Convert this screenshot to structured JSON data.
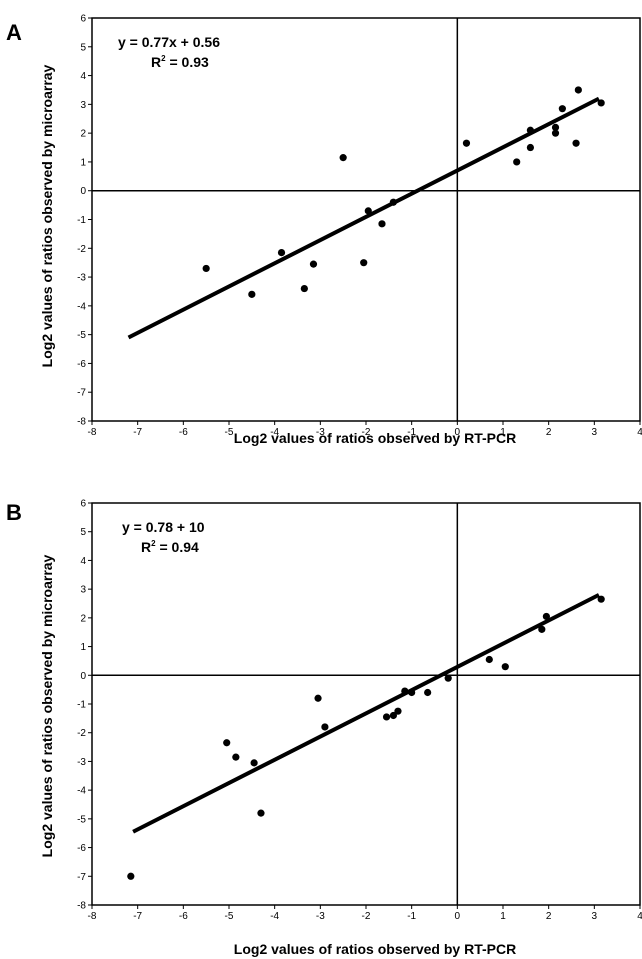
{
  "chart_data": [
    {
      "type": "scatter",
      "panel_label": "A",
      "xlabel": "Log2 values of ratios observed  by RT-PCR",
      "ylabel": "Log2 values of ratios observed by microarray",
      "xlim": [
        -8,
        4
      ],
      "ylim": [
        -8,
        6
      ],
      "x_ticks": [
        -8,
        -7,
        -6,
        -5,
        -4,
        -3,
        -2,
        -1,
        0,
        1,
        2,
        3,
        4
      ],
      "y_ticks": [
        -8,
        -7,
        -6,
        -5,
        -4,
        -3,
        -2,
        -1,
        0,
        1,
        2,
        3,
        4,
        5,
        6
      ],
      "equation": "y = 0.77x + 0.56",
      "r2_prefix": "R",
      "r2_sup": "2",
      "r2_value": " = 0.93",
      "fit_line": {
        "x": [
          -7.2,
          3.1
        ],
        "y": [
          -5.1,
          3.2
        ]
      },
      "points": [
        {
          "x": -5.5,
          "y": -2.7
        },
        {
          "x": -4.5,
          "y": -3.6
        },
        {
          "x": -3.85,
          "y": -2.15
        },
        {
          "x": -3.35,
          "y": -3.4
        },
        {
          "x": -3.15,
          "y": -2.55
        },
        {
          "x": -2.5,
          "y": 1.15
        },
        {
          "x": -2.05,
          "y": -2.5
        },
        {
          "x": -1.95,
          "y": -0.7
        },
        {
          "x": -1.65,
          "y": -1.15
        },
        {
          "x": -1.4,
          "y": -0.4
        },
        {
          "x": 0.2,
          "y": 1.65
        },
        {
          "x": 1.3,
          "y": 1.0
        },
        {
          "x": 1.6,
          "y": 1.5
        },
        {
          "x": 1.6,
          "y": 2.1
        },
        {
          "x": 2.15,
          "y": 2.0
        },
        {
          "x": 2.15,
          "y": 2.2
        },
        {
          "x": 2.3,
          "y": 2.85
        },
        {
          "x": 2.6,
          "y": 1.65
        },
        {
          "x": 2.65,
          "y": 3.5
        },
        {
          "x": 3.15,
          "y": 3.05
        }
      ]
    },
    {
      "type": "scatter",
      "panel_label": "B",
      "xlabel": "Log2 values of ratios observed  by RT-PCR",
      "ylabel": "Log2 values of ratios observed by microarray",
      "xlim": [
        -8,
        4
      ],
      "ylim": [
        -8,
        6
      ],
      "x_ticks": [
        -8,
        -7,
        -6,
        -5,
        -4,
        -3,
        -2,
        -1,
        0,
        1,
        2,
        3,
        4
      ],
      "y_ticks": [
        -8,
        -7,
        -6,
        -5,
        -4,
        -3,
        -2,
        -1,
        0,
        1,
        2,
        3,
        4,
        5,
        6
      ],
      "equation": "y = 0.78 + 10",
      "r2_prefix": "R",
      "r2_sup": "2",
      "r2_value": " = 0.94",
      "fit_line": {
        "x": [
          -7.1,
          3.1
        ],
        "y": [
          -5.45,
          2.8
        ]
      },
      "points": [
        {
          "x": -7.15,
          "y": -7.0
        },
        {
          "x": -5.05,
          "y": -2.35
        },
        {
          "x": -4.85,
          "y": -2.85
        },
        {
          "x": -4.45,
          "y": -3.05
        },
        {
          "x": -4.3,
          "y": -4.8
        },
        {
          "x": -3.05,
          "y": -0.8
        },
        {
          "x": -2.9,
          "y": -1.8
        },
        {
          "x": -1.55,
          "y": -1.45
        },
        {
          "x": -1.4,
          "y": -1.4
        },
        {
          "x": -1.3,
          "y": -1.25
        },
        {
          "x": -1.15,
          "y": -0.55
        },
        {
          "x": -1.0,
          "y": -0.6
        },
        {
          "x": -0.65,
          "y": -0.6
        },
        {
          "x": -0.2,
          "y": -0.1
        },
        {
          "x": 0.7,
          "y": 0.55
        },
        {
          "x": 1.05,
          "y": 0.3
        },
        {
          "x": 1.85,
          "y": 1.6
        },
        {
          "x": 1.95,
          "y": 2.05
        },
        {
          "x": 3.15,
          "y": 2.65
        }
      ]
    }
  ]
}
